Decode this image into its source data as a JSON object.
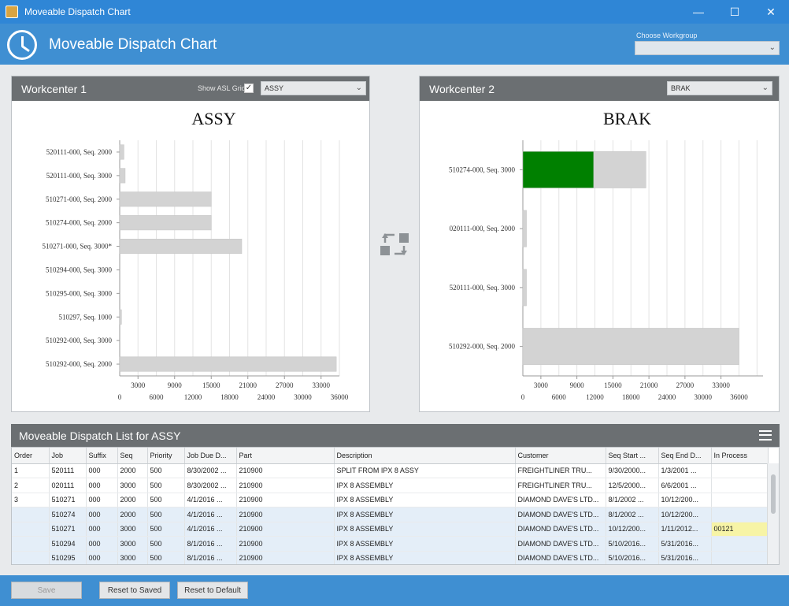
{
  "window": {
    "title": "Moveable Dispatch Chart",
    "minimize": "—",
    "maximize": "☐",
    "close": "✕"
  },
  "header": {
    "title": "Moveable Dispatch Chart",
    "workgroup_label": "Choose Workgroup",
    "workgroup_value": ""
  },
  "wc1": {
    "title": "Workcenter 1",
    "show_grid_label": "Show ASL Grid",
    "show_grid_checked": "✓",
    "selected": "ASSY"
  },
  "wc2": {
    "title": "Workcenter 2",
    "selected": "BRAK"
  },
  "chart_data": [
    {
      "type": "bar",
      "orientation": "horizontal",
      "title": "ASSY",
      "categories": [
        "520111-000, Seq. 2000",
        "520111-000, Seq. 3000",
        "510271-000, Seq. 2000",
        "510274-000, Seq. 2000",
        "510271-000, Seq. 3000*",
        "510294-000, Seq. 3000",
        "510295-000, Seq. 3000",
        "510297, Seq. 1000",
        "510292-000, Seq. 3000",
        "510292-000, Seq. 2000"
      ],
      "values": [
        700,
        900,
        15000,
        15000,
        20000,
        0,
        0,
        300,
        0,
        35500
      ],
      "xlim": [
        0,
        36000
      ],
      "ticks_upper": [
        "3000",
        "9000",
        "15000",
        "21000",
        "27000",
        "33000"
      ],
      "ticks_lower": [
        "0",
        "6000",
        "12000",
        "18000",
        "24000",
        "30000",
        "36000"
      ],
      "grid": true,
      "bar_color": "#d3d3d3"
    },
    {
      "type": "bar",
      "orientation": "horizontal",
      "stacked": true,
      "title": "BRAK",
      "categories": [
        "510274-000, Seq. 3000",
        "020111-000, Seq. 2000",
        "520111-000, Seq. 3000",
        "510292-000, Seq. 2000"
      ],
      "series": [
        {
          "values": [
            11800,
            0,
            0,
            0
          ],
          "color": "#008000"
        },
        {
          "values": [
            8700,
            600,
            600,
            36000
          ],
          "color": "#d3d3d3"
        }
      ],
      "xlim": [
        0,
        40000
      ],
      "ticks_upper": [
        "3000",
        "9000",
        "15000",
        "21000",
        "27000",
        "33000"
      ],
      "ticks_lower": [
        "0",
        "6000",
        "12000",
        "18000",
        "24000",
        "30000",
        "36000"
      ],
      "grid": true
    }
  ],
  "list": {
    "title": "Moveable Dispatch List for ASSY",
    "columns": [
      "Order",
      "Job",
      "Suffix",
      "Seq",
      "Priority",
      "Job Due D...",
      "Part",
      "Description",
      "Customer",
      "Seq Start ...",
      "Seq End D...",
      "In Process"
    ],
    "rows": [
      [
        "1",
        "520111",
        "000",
        "2000",
        "500",
        "8/30/2002 ...",
        "210900",
        "SPLIT FROM IPX 8 ASSY",
        "FREIGHTLINER TRU...",
        "9/30/2000...",
        "1/3/2001 ...",
        ""
      ],
      [
        "2",
        "020111",
        "000",
        "3000",
        "500",
        "8/30/2002 ...",
        "210900",
        "IPX 8 ASSEMBLY",
        "FREIGHTLINER TRU...",
        "12/5/2000...",
        "6/6/2001 ...",
        ""
      ],
      [
        "3",
        "510271",
        "000",
        "2000",
        "500",
        "4/1/2016 ...",
        "210900",
        "IPX 8 ASSEMBLY",
        "DIAMOND DAVE'S LTD...",
        "8/1/2002 ...",
        "10/12/200...",
        ""
      ],
      [
        "",
        "510274",
        "000",
        "2000",
        "500",
        "4/1/2016 ...",
        "210900",
        "IPX 8 ASSEMBLY",
        "DIAMOND DAVE'S LTD...",
        "8/1/2002 ...",
        "10/12/200...",
        ""
      ],
      [
        "",
        "510271",
        "000",
        "3000",
        "500",
        "4/1/2016 ...",
        "210900",
        "IPX 8 ASSEMBLY",
        "DIAMOND DAVE'S LTD...",
        "10/12/200...",
        "1/11/2012...",
        "00121"
      ],
      [
        "",
        "510294",
        "000",
        "3000",
        "500",
        "8/1/2016 ...",
        "210900",
        "IPX 8 ASSEMBLY",
        "DIAMOND DAVE'S LTD...",
        "5/10/2016...",
        "5/31/2016...",
        ""
      ],
      [
        "",
        "510295",
        "000",
        "3000",
        "500",
        "8/1/2016 ...",
        "210900",
        "IPX 8 ASSEMBLY",
        "DIAMOND DAVE'S LTD...",
        "5/10/2016...",
        "5/31/2016...",
        ""
      ]
    ]
  },
  "footer": {
    "save": "Save",
    "reset_saved": "Reset to Saved",
    "reset_default": "Reset to Default"
  }
}
